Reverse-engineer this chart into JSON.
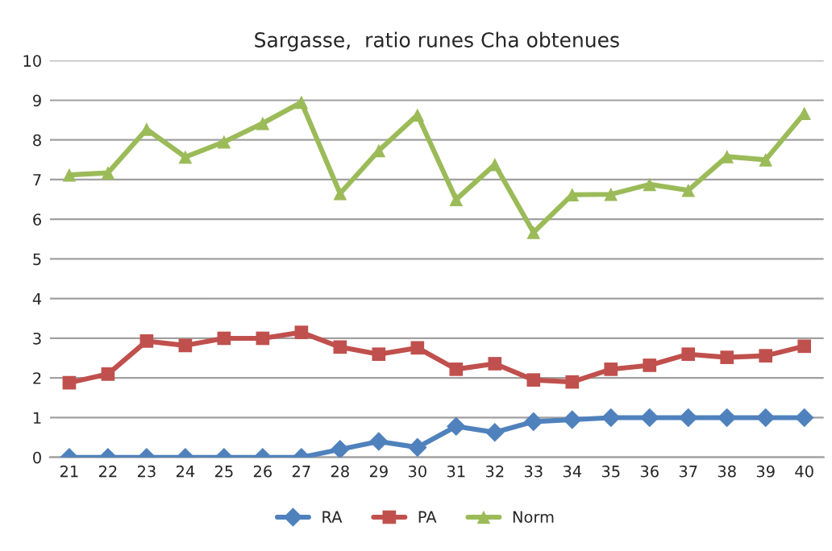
{
  "chart_data": {
    "type": "line",
    "title": "Sargasse,  ratio runes Cha obtenues",
    "categories": [
      "21",
      "22",
      "23",
      "24",
      "25",
      "26",
      "27",
      "28",
      "29",
      "30",
      "31",
      "32",
      "33",
      "34",
      "35",
      "36",
      "37",
      "38",
      "39",
      "40"
    ],
    "series": [
      {
        "name": "RA",
        "color": "#4f81bd",
        "marker": "diamond",
        "values": [
          0,
          0,
          0,
          0,
          0,
          0,
          0,
          0.2,
          0.4,
          0.25,
          0.78,
          0.63,
          0.9,
          0.95,
          1,
          1,
          1,
          1,
          1,
          1
        ]
      },
      {
        "name": "PA",
        "color": "#c0504d",
        "marker": "square",
        "values": [
          1.88,
          2.1,
          2.93,
          2.82,
          3,
          3,
          3.15,
          2.78,
          2.6,
          2.76,
          2.22,
          2.36,
          1.95,
          1.9,
          2.22,
          2.32,
          2.6,
          2.52,
          2.56,
          2.8
        ]
      },
      {
        "name": "Norm",
        "color": "#9bbb59",
        "marker": "triangle",
        "values": [
          7.12,
          7.17,
          8.27,
          7.57,
          7.95,
          8.42,
          8.95,
          6.65,
          7.73,
          8.63,
          6.5,
          7.38,
          5.67,
          6.62,
          6.63,
          6.88,
          6.73,
          7.58,
          7.5,
          8.67
        ]
      }
    ],
    "ylim": [
      0,
      10
    ],
    "yticks": [
      0,
      1,
      2,
      3,
      4,
      5,
      6,
      7,
      8,
      9,
      10
    ],
    "grid": "y",
    "legend": "bottom",
    "line_style": "solid"
  }
}
